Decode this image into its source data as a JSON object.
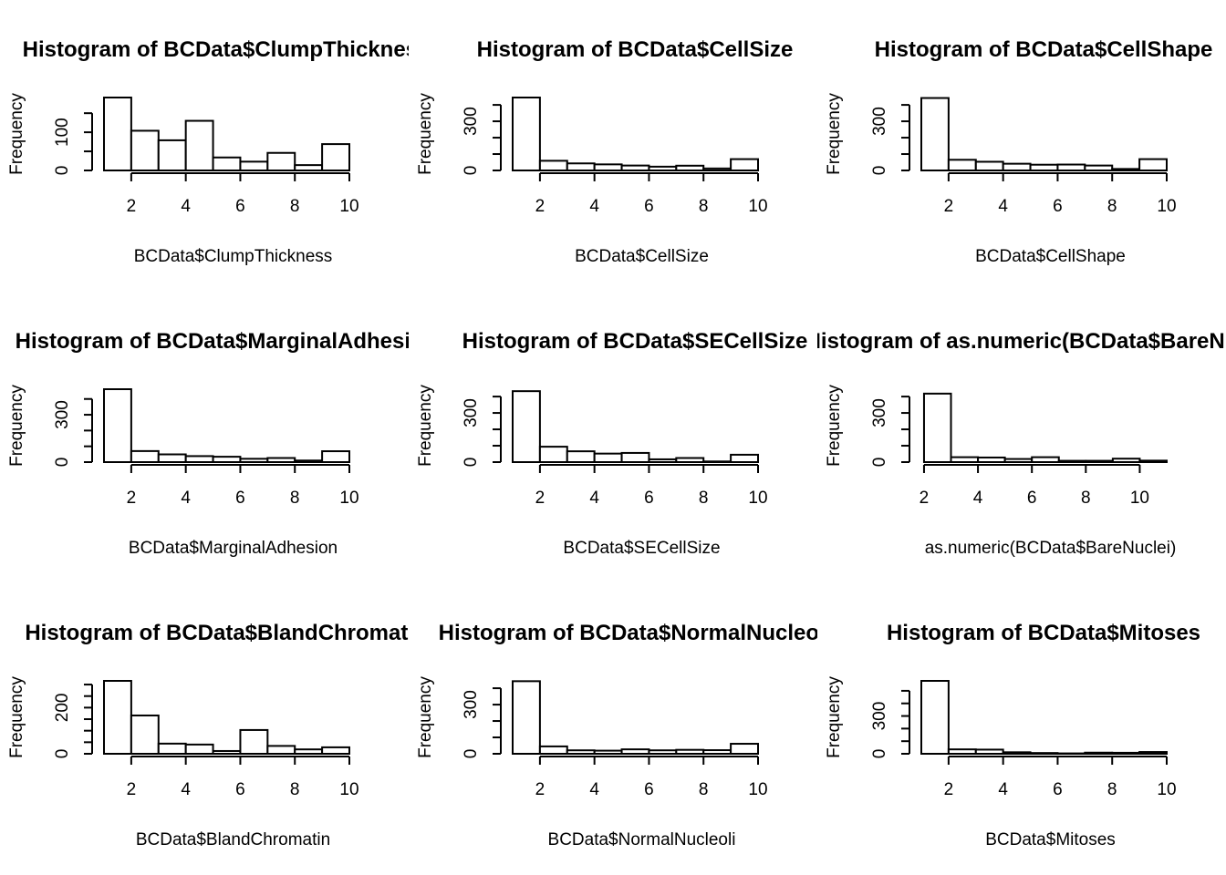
{
  "figure": {
    "title": "",
    "panels_description": "3x3 grid of frequency histograms"
  },
  "chart_data": [
    {
      "type": "bar",
      "title": "Histogram of BCData$ClumpThickness",
      "xlabel": "BCData$ClumpThickness",
      "ylabel": "Frequency",
      "bins": [
        [
          1,
          2
        ],
        [
          2,
          3
        ],
        [
          3,
          4
        ],
        [
          4,
          5
        ],
        [
          5,
          6
        ],
        [
          6,
          7
        ],
        [
          7,
          8
        ],
        [
          8,
          9
        ],
        [
          9,
          10
        ]
      ],
      "values": [
        191,
        104,
        79,
        130,
        34,
        23,
        46,
        14,
        69
      ],
      "xlim": [
        1,
        10
      ],
      "ylim": [
        0,
        191
      ],
      "xticks": [
        2,
        4,
        6,
        8,
        10
      ],
      "yticks": [
        0,
        100
      ],
      "yminor": [
        0,
        50,
        100,
        150
      ],
      "grid": false
    },
    {
      "type": "bar",
      "title": "Histogram of BCData$CellSize",
      "xlabel": "BCData$CellSize",
      "ylabel": "Frequency",
      "bins": [
        [
          1,
          2
        ],
        [
          2,
          3
        ],
        [
          3,
          4
        ],
        [
          4,
          5
        ],
        [
          5,
          6
        ],
        [
          6,
          7
        ],
        [
          7,
          8
        ],
        [
          8,
          9
        ],
        [
          9,
          10
        ]
      ],
      "values": [
        445,
        59,
        43,
        37,
        30,
        23,
        29,
        12,
        69
      ],
      "xlim": [
        1,
        10
      ],
      "ylim": [
        0,
        445
      ],
      "xticks": [
        2,
        4,
        6,
        8,
        10
      ],
      "yticks": [
        0,
        300
      ],
      "yminor": [
        0,
        100,
        200,
        300,
        400
      ],
      "grid": false
    },
    {
      "type": "bar",
      "title": "Histogram of BCData$CellShape",
      "xlabel": "BCData$CellShape",
      "ylabel": "Frequency",
      "bins": [
        [
          1,
          2
        ],
        [
          2,
          3
        ],
        [
          3,
          4
        ],
        [
          4,
          5
        ],
        [
          5,
          6
        ],
        [
          6,
          7
        ],
        [
          7,
          8
        ],
        [
          8,
          9
        ],
        [
          9,
          10
        ]
      ],
      "values": [
        442,
        65,
        53,
        41,
        35,
        36,
        30,
        9,
        69
      ],
      "xlim": [
        1,
        10
      ],
      "ylim": [
        0,
        445
      ],
      "xticks": [
        2,
        4,
        6,
        8,
        10
      ],
      "yticks": [
        0,
        300
      ],
      "yminor": [
        0,
        100,
        200,
        300,
        400
      ],
      "grid": false
    },
    {
      "type": "bar",
      "title": "Histogram of BCData$MarginalAdhesion",
      "xlabel": "BCData$MarginalAdhesion",
      "ylabel": "Frequency",
      "bins": [
        [
          1,
          2
        ],
        [
          2,
          3
        ],
        [
          3,
          4
        ],
        [
          4,
          5
        ],
        [
          5,
          6
        ],
        [
          6,
          7
        ],
        [
          7,
          8
        ],
        [
          8,
          9
        ],
        [
          9,
          10
        ]
      ],
      "values": [
        462,
        70,
        49,
        38,
        34,
        21,
        26,
        10,
        69
      ],
      "xlim": [
        1,
        10
      ],
      "ylim": [
        0,
        462
      ],
      "xticks": [
        2,
        4,
        6,
        8,
        10
      ],
      "yticks": [
        0,
        300
      ],
      "yminor": [
        0,
        100,
        200,
        300,
        400
      ],
      "grid": false
    },
    {
      "type": "bar",
      "title": "Histogram of BCData$SECellSize",
      "xlabel": "BCData$SECellSize",
      "ylabel": "Frequency",
      "bins": [
        [
          1,
          2
        ],
        [
          2,
          3
        ],
        [
          3,
          4
        ],
        [
          4,
          5
        ],
        [
          5,
          6
        ],
        [
          6,
          7
        ],
        [
          7,
          8
        ],
        [
          8,
          9
        ],
        [
          9,
          10
        ]
      ],
      "values": [
        433,
        94,
        66,
        52,
        56,
        17,
        25,
        4,
        45
      ],
      "xlim": [
        1,
        10
      ],
      "ylim": [
        0,
        445
      ],
      "xticks": [
        2,
        4,
        6,
        8,
        10
      ],
      "yticks": [
        0,
        300
      ],
      "yminor": [
        0,
        100,
        200,
        300,
        400
      ],
      "grid": false
    },
    {
      "type": "bar",
      "title": "Histogram of as.numeric(BCData$BareNuclei)",
      "xlabel": "as.numeric(BCData$BareNuclei)",
      "ylabel": "Frequency",
      "bins": [
        [
          1,
          2
        ],
        [
          2,
          3
        ],
        [
          3,
          4
        ],
        [
          4,
          5
        ],
        [
          5,
          6
        ],
        [
          6,
          7
        ],
        [
          7,
          8
        ],
        [
          8,
          9
        ],
        [
          9,
          10
        ],
        [
          10,
          11
        ]
      ],
      "values": [
        0,
        418,
        30,
        28,
        19,
        30,
        8,
        8,
        21,
        9
      ],
      "xlim": [
        1.9,
        11
      ],
      "ylim": [
        0,
        445
      ],
      "xticks": [
        2,
        4,
        6,
        8,
        10
      ],
      "yticks": [
        0,
        300
      ],
      "yminor": [
        0,
        100,
        200,
        300,
        400
      ],
      "grid": false
    },
    {
      "type": "bar",
      "title": "Histogram of BCData$BlandChromatin",
      "xlabel": "BCData$BlandChromatin",
      "ylabel": "Frequency",
      "bins": [
        [
          1,
          2
        ],
        [
          2,
          3
        ],
        [
          3,
          4
        ],
        [
          4,
          5
        ],
        [
          5,
          6
        ],
        [
          6,
          7
        ],
        [
          7,
          8
        ],
        [
          8,
          9
        ],
        [
          9,
          10
        ]
      ],
      "values": [
        316,
        166,
        44,
        40,
        12,
        103,
        34,
        19,
        28
      ],
      "xlim": [
        1,
        10
      ],
      "ylim": [
        0,
        316
      ],
      "xticks": [
        2,
        4,
        6,
        8,
        10
      ],
      "yticks": [
        0,
        200
      ],
      "yminor": [
        0,
        50,
        100,
        150,
        200,
        250,
        300
      ],
      "grid": false
    },
    {
      "type": "bar",
      "title": "Histogram of BCData$NormalNucleoli",
      "xlabel": "BCData$NormalNucleoli",
      "ylabel": "Frequency",
      "bins": [
        [
          1,
          2
        ],
        [
          2,
          3
        ],
        [
          3,
          4
        ],
        [
          4,
          5
        ],
        [
          5,
          6
        ],
        [
          6,
          7
        ],
        [
          7,
          8
        ],
        [
          8,
          9
        ],
        [
          9,
          10
        ]
      ],
      "values": [
        443,
        45,
        21,
        19,
        27,
        21,
        24,
        22,
        61
      ],
      "xlim": [
        1,
        10
      ],
      "ylim": [
        0,
        445
      ],
      "xticks": [
        2,
        4,
        6,
        8,
        10
      ],
      "yticks": [
        0,
        300
      ],
      "yminor": [
        0,
        100,
        200,
        300,
        400
      ],
      "grid": false
    },
    {
      "type": "bar",
      "title": "Histogram of BCData$Mitoses",
      "xlabel": "BCData$Mitoses",
      "ylabel": "Frequency",
      "bins": [
        [
          1,
          2
        ],
        [
          2,
          3
        ],
        [
          3,
          4
        ],
        [
          4,
          5
        ],
        [
          5,
          6
        ],
        [
          6,
          7
        ],
        [
          7,
          8
        ],
        [
          8,
          9
        ],
        [
          9,
          10
        ]
      ],
      "values": [
        579,
        35,
        33,
        12,
        6,
        3,
        9,
        8,
        14
      ],
      "xlim": [
        1,
        10
      ],
      "ylim": [
        0,
        579
      ],
      "xticks": [
        2,
        4,
        6,
        8,
        10
      ],
      "yticks": [
        0,
        300
      ],
      "yminor": [
        0,
        100,
        200,
        300,
        400,
        500
      ],
      "grid": false
    }
  ]
}
